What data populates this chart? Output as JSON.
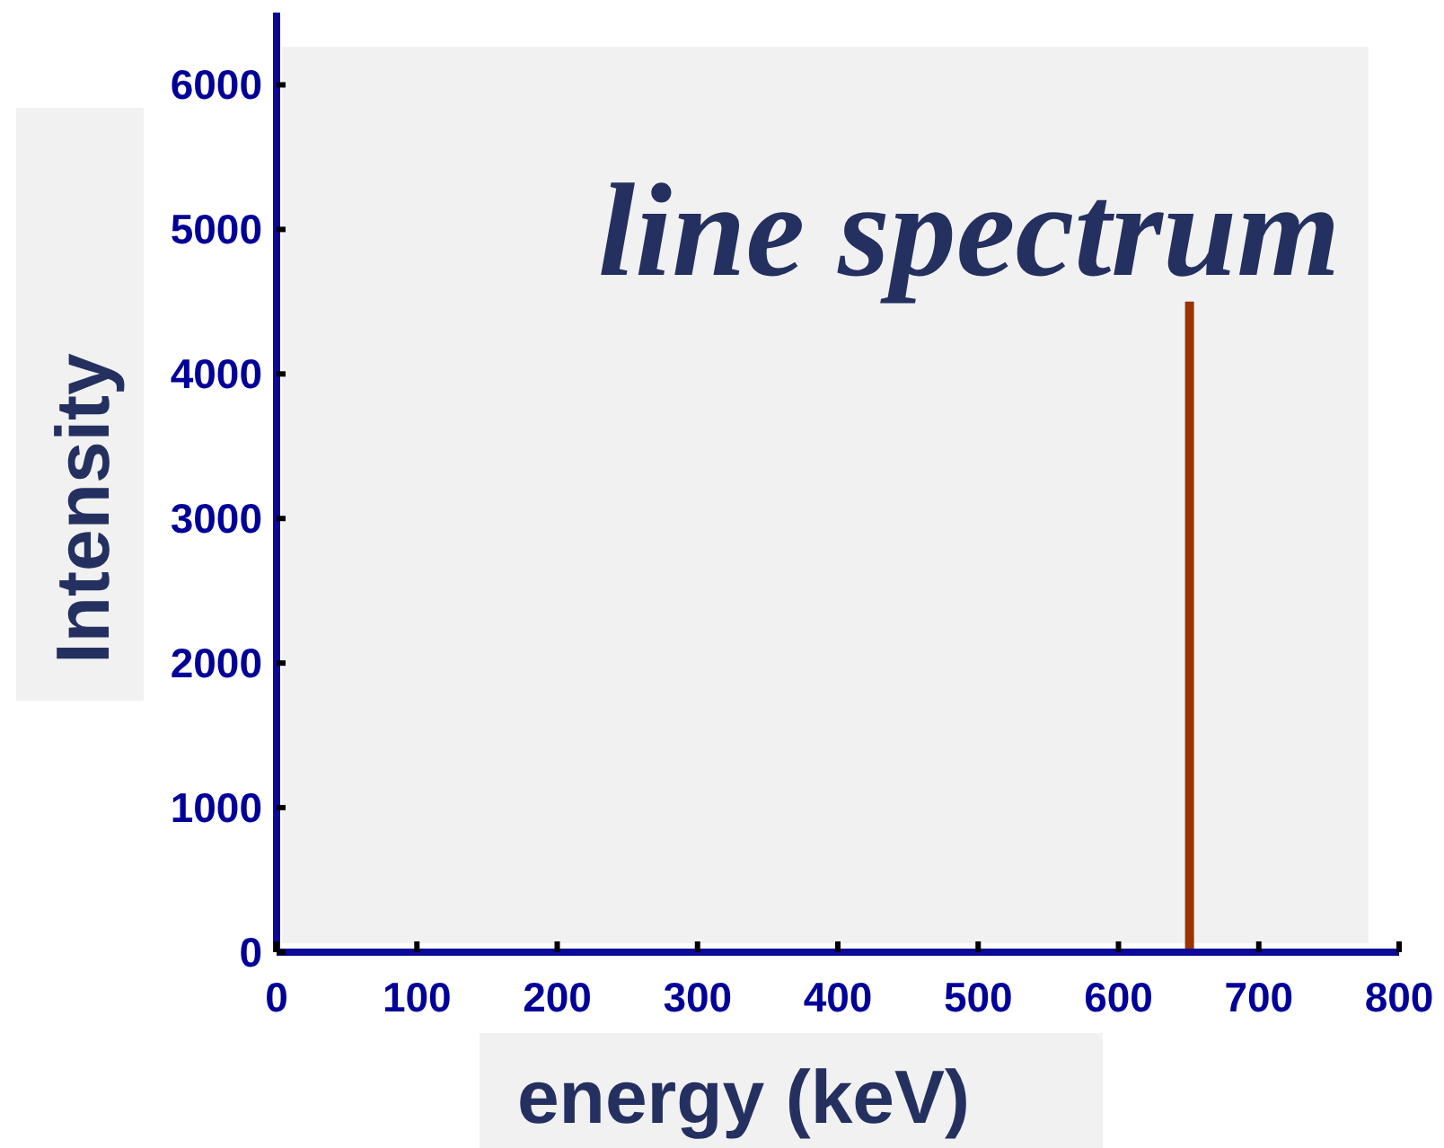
{
  "chart_data": {
    "type": "bar",
    "title": "line spectrum",
    "xlabel": "energy (keV)",
    "ylabel": "Intensity",
    "x": [
      650
    ],
    "values": [
      4500
    ],
    "color": "#993300",
    "xlim": [
      0,
      800
    ],
    "xticks": [
      0,
      100,
      200,
      300,
      400,
      500,
      600,
      700,
      800
    ],
    "ylim": [
      0,
      6500
    ],
    "yticks": [
      0,
      1000,
      2000,
      3000,
      4000,
      5000,
      6000
    ]
  }
}
